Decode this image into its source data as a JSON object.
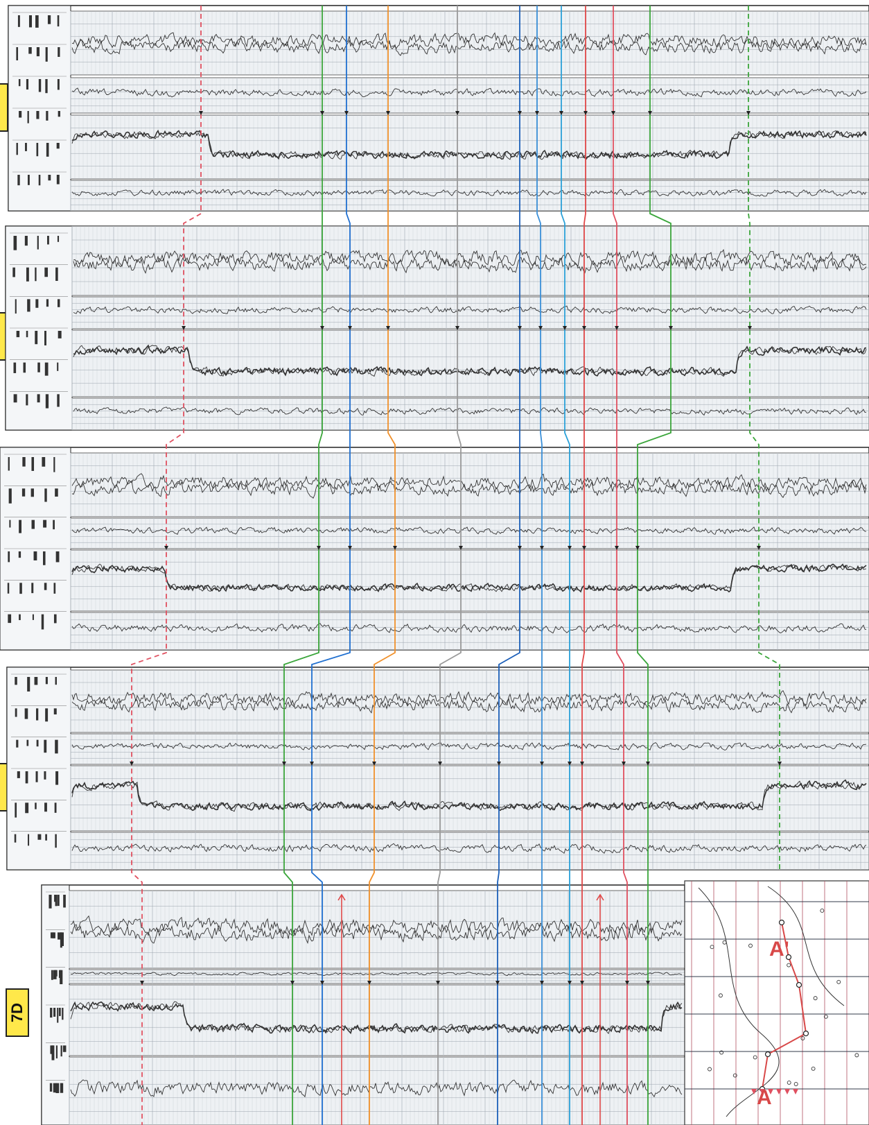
{
  "well_tags": {
    "w5": "7D"
  },
  "map": {
    "section_start": "A",
    "section_end": "A'"
  },
  "correlation_markers": [
    {
      "id": "m1",
      "color": "#e05060",
      "dashed": true
    },
    {
      "id": "m2",
      "color": "#3aa53a",
      "dashed": false
    },
    {
      "id": "m3",
      "color": "#1f6fd0",
      "dashed": false
    },
    {
      "id": "m4",
      "color": "#f0902a",
      "dashed": false
    },
    {
      "id": "m5",
      "color": "#9a9a9a",
      "dashed": false
    },
    {
      "id": "m6",
      "color": "#1c5fb8",
      "dashed": false
    },
    {
      "id": "m7",
      "color": "#3a8fd8",
      "dashed": false
    },
    {
      "id": "m8",
      "color": "#2aa0d8",
      "dashed": false
    },
    {
      "id": "m9",
      "color": "#e04848",
      "dashed": false
    },
    {
      "id": "m10",
      "color": "#e05060",
      "dashed": false
    },
    {
      "id": "m11",
      "color": "#3aa53a",
      "dashed": false
    },
    {
      "id": "m12",
      "color": "#3aa53a",
      "dashed": true
    }
  ],
  "colors": {
    "tag_fill": "#ffe84a",
    "log_trace": "#333333",
    "grid": "#b8c0c8",
    "map_line": "#d84848"
  }
}
